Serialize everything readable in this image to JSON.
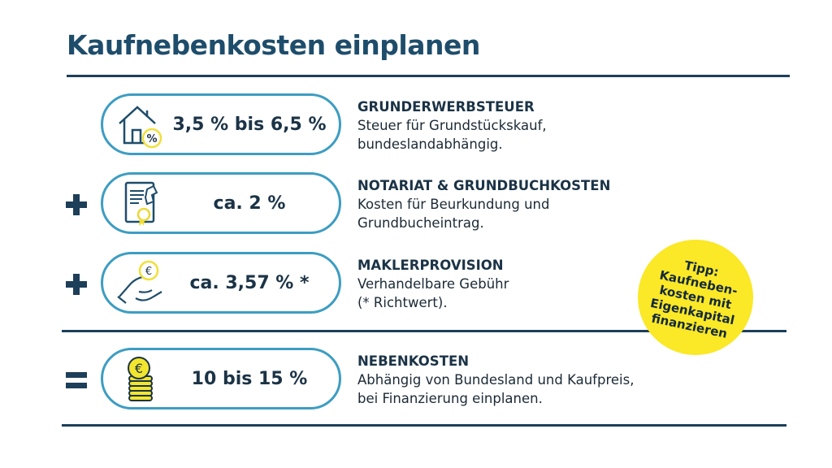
{
  "title": "Kaufnebenkosten einplanen",
  "items": [
    {
      "operator": "",
      "icon": "house-percent-icon",
      "value": "3,5 % bis 6,5 %",
      "heading": "GRUNDERWERBSTEUER",
      "line1": "Steuer für Grundstückskauf,",
      "line2": "bundeslandabhängig."
    },
    {
      "operator": "plus",
      "icon": "certificate-stamp-icon",
      "value": "ca. 2 %",
      "heading": "NOTARIAT & GRUNDBUCHKOSTEN",
      "line1": "Kosten für Beurkundung und",
      "line2": "Grundbucheintrag."
    },
    {
      "operator": "plus",
      "icon": "hands-euro-icon",
      "value": "ca. 3,57 % *",
      "heading": "MAKLERPROVISION",
      "line1": "Verhandelbare Gebühr",
      "line2": "(* Richtwert)."
    },
    {
      "operator": "equals",
      "icon": "euro-coin-stack-icon",
      "value": "10 bis 15 %",
      "heading": "NEBENKOSTEN",
      "line1": "Abhängig von Bundesland und Kaufpreis,",
      "line2": "bei Finanzierung einplanen."
    }
  ],
  "tip": {
    "line1": "Tipp:",
    "line2": "Kaufneben-",
    "line3": "kosten mit",
    "line4": "Eigenkapital",
    "line5": "finanzieren"
  },
  "colors": {
    "navy": "#1d3f5a",
    "pill_border": "#3d9dc2",
    "yellow": "#fbe826"
  }
}
